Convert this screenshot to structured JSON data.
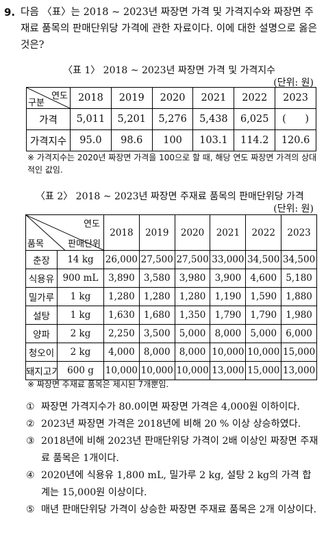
{
  "question": {
    "number": "9.",
    "text": "다음 〈표〉는 2018 ~ 2023년 짜장면 가격 및 가격지수와 짜장면 주재료 품목의 판매단위당 가격에 관한 자료이다. 이에 대한 설명으로 옳은 것은?"
  },
  "table1": {
    "title": "〈표 1〉 2018 ~ 2023년 짜장면 가격 및 가격지수",
    "unit": "(단위: 원)",
    "corner_top": "연도",
    "corner_bottom": "구분",
    "years": [
      "2018",
      "2019",
      "2020",
      "2021",
      "2022",
      "2023"
    ],
    "rows": [
      {
        "label": "가격",
        "values": [
          "5,011",
          "5,201",
          "5,276",
          "5,438",
          "6,025",
          "(      )"
        ]
      },
      {
        "label": "가격지수",
        "values": [
          "95.0",
          "98.6",
          "100",
          "103.1",
          "114.2",
          "120.6"
        ]
      }
    ],
    "note": "※ 가격지수는 2020년 짜장면 가격을 100으로 할 때, 해당 연도 짜장면 가격의 상대적인 값임."
  },
  "table2": {
    "title": "〈표 2〉 2018 ~ 2023년 짜장면 주재료 품목의 판매단위당 가격",
    "unit": "(단위: 원)",
    "corner_top": "연도",
    "corner_mid": "판매단위",
    "corner_bottom": "품목",
    "years": [
      "2018",
      "2019",
      "2020",
      "2021",
      "2022",
      "2023"
    ],
    "rows": [
      {
        "item": "춘장",
        "unit": "14 kg",
        "values": [
          "26,000",
          "27,500",
          "27,500",
          "33,000",
          "34,500",
          "34,500"
        ]
      },
      {
        "item": "식용유",
        "unit": "900 mL",
        "values": [
          "3,890",
          "3,580",
          "3,980",
          "3,900",
          "4,600",
          "5,180"
        ]
      },
      {
        "item": "밀가루",
        "unit": "1 kg",
        "values": [
          "1,280",
          "1,280",
          "1,280",
          "1,190",
          "1,590",
          "1,880"
        ]
      },
      {
        "item": "설탕",
        "unit": "1 kg",
        "values": [
          "1,630",
          "1,680",
          "1,350",
          "1,790",
          "1,790",
          "1,980"
        ]
      },
      {
        "item": "양파",
        "unit": "2 kg",
        "values": [
          "2,250",
          "3,500",
          "5,000",
          "8,000",
          "5,000",
          "6,000"
        ]
      },
      {
        "item": "청오이",
        "unit": "2 kg",
        "values": [
          "4,000",
          "8,000",
          "8,000",
          "10,000",
          "10,000",
          "15,000"
        ]
      },
      {
        "item": "돼지고기",
        "unit": "600 g",
        "values": [
          "10,000",
          "10,000",
          "10,000",
          "13,000",
          "15,000",
          "13,000"
        ]
      }
    ],
    "note": "※ 짜장면 주재료 품목은 제시된 7개뿐임."
  },
  "options": [
    {
      "mark": "①",
      "text": "짜장면 가격지수가 80.0이면 짜장면 가격은 4,000원 이하이다."
    },
    {
      "mark": "②",
      "text": "2023년 짜장면 가격은 2018년에 비해 20 % 이상 상승하였다."
    },
    {
      "mark": "③",
      "text": "2018년에 비해 2023년 판매단위당 가격이 2배 이상인 짜장면 주재료 품목은 1개이다."
    },
    {
      "mark": "④",
      "text": "2020년에 식용유 1,800 mL, 밀가루 2 kg, 설탕 2 kg의 가격 합계는 15,000원 이상이다."
    },
    {
      "mark": "⑤",
      "text": "매년 판매단위당 가격이 상승한 짜장면 주재료 품목은 2개 이상이다."
    }
  ]
}
